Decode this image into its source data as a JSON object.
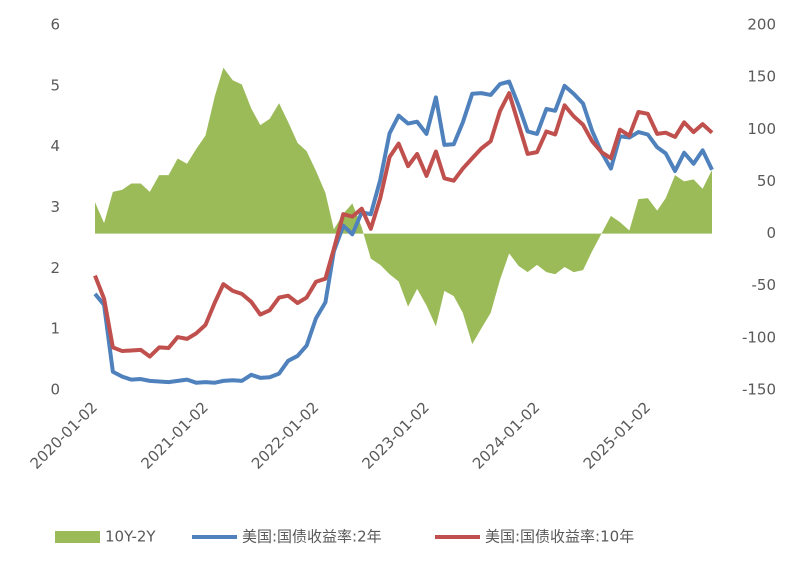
{
  "chart_data": {
    "type": "line",
    "x": [
      "2020-01-02",
      "2020-02-01",
      "2020-03-01",
      "2020-04-01",
      "2020-05-01",
      "2020-06-01",
      "2020-07-01",
      "2020-08-01",
      "2020-09-01",
      "2020-10-01",
      "2020-11-01",
      "2020-12-01",
      "2021-01-01",
      "2021-02-01",
      "2021-03-01",
      "2021-04-01",
      "2021-05-01",
      "2021-06-01",
      "2021-07-01",
      "2021-08-01",
      "2021-09-01",
      "2021-10-01",
      "2021-11-01",
      "2021-12-01",
      "2022-01-01",
      "2022-02-01",
      "2022-03-01",
      "2022-04-01",
      "2022-05-01",
      "2022-06-01",
      "2022-07-01",
      "2022-08-01",
      "2022-09-01",
      "2022-10-01",
      "2022-11-01",
      "2022-12-01",
      "2023-01-01",
      "2023-02-01",
      "2023-03-01",
      "2023-04-01",
      "2023-05-01",
      "2023-06-01",
      "2023-07-01",
      "2023-08-01",
      "2023-09-01",
      "2023-10-01",
      "2023-11-01",
      "2023-12-01",
      "2024-01-01",
      "2024-02-01",
      "2024-03-01",
      "2024-04-01",
      "2024-05-01",
      "2024-06-01",
      "2024-07-01",
      "2024-08-01",
      "2024-09-01",
      "2024-10-01",
      "2024-11-01",
      "2024-12-01",
      "2025-01-01",
      "2025-02-01",
      "2025-03-01",
      "2025-04-01",
      "2025-05-01",
      "2025-06-01",
      "2025-07-01",
      "2025-08-01"
    ],
    "series": [
      {
        "name": "10Y-2Y",
        "color": "#9bbb59",
        "kind": "area",
        "axis": "y2",
        "values": [
          30,
          10,
          40,
          42,
          48,
          48,
          40,
          56,
          56,
          72,
          67,
          81,
          94,
          132,
          159,
          147,
          143,
          120,
          104,
          110,
          125,
          107,
          87,
          79,
          60,
          39,
          4,
          19,
          29,
          6,
          -24,
          -30,
          -39,
          -46,
          -70,
          -53,
          -69,
          -89,
          -55,
          -60,
          -76,
          -106,
          -91,
          -76,
          -44,
          -19,
          -31,
          -37,
          -30,
          -37,
          -39,
          -32,
          -37,
          -35,
          -17,
          0,
          17,
          11,
          3,
          33,
          34,
          22,
          34,
          56,
          50,
          52,
          43,
          61
        ]
      },
      {
        "name": "美国:国债收益率:2年",
        "color": "#4f81bd",
        "kind": "line",
        "values": [
          1.58,
          1.4,
          0.3,
          0.22,
          0.17,
          0.18,
          0.15,
          0.14,
          0.13,
          0.15,
          0.17,
          0.12,
          0.13,
          0.12,
          0.15,
          0.16,
          0.15,
          0.25,
          0.2,
          0.21,
          0.27,
          0.48,
          0.56,
          0.73,
          1.18,
          1.44,
          2.28,
          2.7,
          2.56,
          2.92,
          2.89,
          3.45,
          4.22,
          4.51,
          4.38,
          4.41,
          4.21,
          4.81,
          4.03,
          4.04,
          4.4,
          4.87,
          4.88,
          4.85,
          5.03,
          5.07,
          4.68,
          4.25,
          4.21,
          4.62,
          4.59,
          5.0,
          4.87,
          4.71,
          4.26,
          3.91,
          3.64,
          4.17,
          4.15,
          4.24,
          4.2,
          3.99,
          3.89,
          3.6,
          3.9,
          3.72,
          3.94,
          3.62
        ]
      },
      {
        "name": "美国:国债收益率:10年",
        "color": "#c0504d",
        "kind": "line",
        "values": [
          1.88,
          1.5,
          0.7,
          0.64,
          0.65,
          0.66,
          0.55,
          0.7,
          0.69,
          0.87,
          0.84,
          0.93,
          1.07,
          1.44,
          1.74,
          1.63,
          1.58,
          1.45,
          1.24,
          1.31,
          1.52,
          1.55,
          1.43,
          1.52,
          1.78,
          1.83,
          2.32,
          2.89,
          2.85,
          2.98,
          2.65,
          3.15,
          3.83,
          4.05,
          3.68,
          3.88,
          3.52,
          3.92,
          3.48,
          3.44,
          3.64,
          3.81,
          3.97,
          4.09,
          4.59,
          4.88,
          4.37,
          3.88,
          3.91,
          4.25,
          4.2,
          4.68,
          4.5,
          4.36,
          4.09,
          3.91,
          3.81,
          4.28,
          4.18,
          4.57,
          4.54,
          4.21,
          4.23,
          4.16,
          4.4,
          4.24,
          4.37,
          4.23
        ]
      }
    ],
    "xlim": [
      "2020-01-02",
      "2025-08-01"
    ],
    "xticks": [
      "2020-01-02",
      "2021-01-02",
      "2022-01-02",
      "2023-01-02",
      "2024-01-02",
      "2025-01-02"
    ],
    "ylim": [
      0,
      6
    ],
    "yticks": [
      0,
      1,
      2,
      3,
      4,
      5,
      6
    ],
    "y2lim": [
      -150,
      200
    ],
    "y2ticks": [
      -150,
      -100,
      -50,
      0,
      50,
      100,
      150,
      200
    ],
    "legend": "bottom"
  }
}
